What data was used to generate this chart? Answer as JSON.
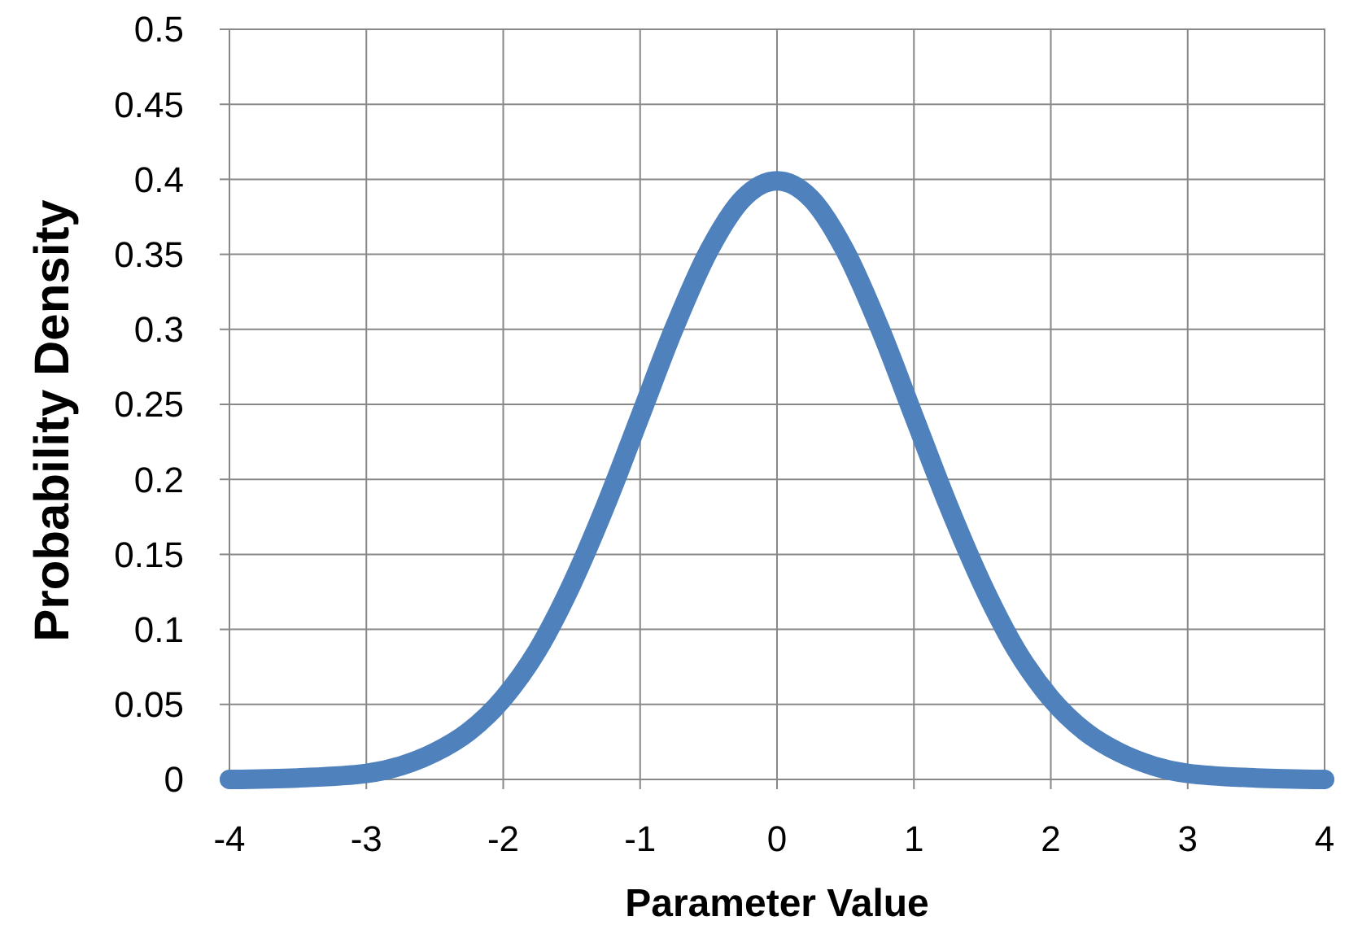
{
  "chart_data": {
    "type": "line",
    "xlabel": "Parameter Value",
    "ylabel": "Probability Density",
    "x": [
      -4,
      -3.5,
      -3,
      -2.75,
      -2.5,
      -2.25,
      -2,
      -1.75,
      -1.5,
      -1.25,
      -1,
      -0.75,
      -0.5,
      -0.25,
      0,
      0.25,
      0.5,
      0.75,
      1,
      1.25,
      1.5,
      1.75,
      2,
      2.25,
      2.5,
      2.75,
      3,
      3.5,
      4
    ],
    "series": [
      {
        "color": "#4f81bd",
        "values": [
          0,
          0.001,
          0.004,
          0.009,
          0.018,
          0.032,
          0.054,
          0.086,
          0.13,
          0.183,
          0.242,
          0.301,
          0.352,
          0.387,
          0.399,
          0.387,
          0.352,
          0.301,
          0.242,
          0.183,
          0.13,
          0.086,
          0.054,
          0.032,
          0.018,
          0.009,
          0.004,
          0.001,
          0
        ]
      }
    ],
    "xlim": [
      -4,
      4
    ],
    "xticks": [
      -4,
      -3,
      -2,
      -1,
      0,
      1,
      2,
      3,
      4
    ],
    "ylim": [
      0,
      0.5
    ],
    "yticks": [
      0,
      0.05,
      0.1,
      0.15,
      0.2,
      0.25,
      0.3,
      0.35,
      0.4,
      0.45,
      0.5
    ],
    "grid": true,
    "marker": "none",
    "line_style": "solid"
  }
}
